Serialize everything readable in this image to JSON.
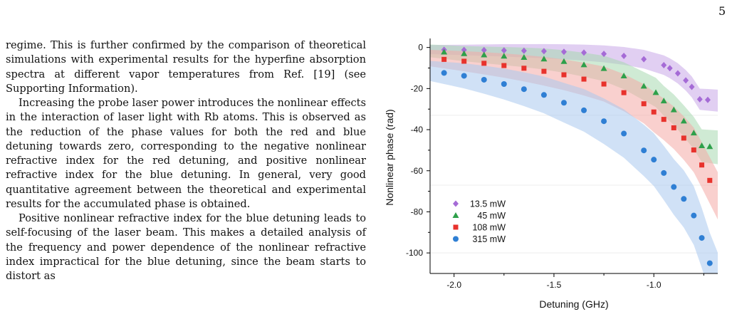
{
  "page": {
    "number": "5"
  },
  "body_text": {
    "paragraphs": [
      "regime. This is further confirmed by the comparison of theoretical simulations with experimental results for the hyperfine absorption spectra at different vapor temperatures from Ref. [19] (see Supporting Information).",
      "Increasing the probe laser power introduces the nonlinear effects in the interaction of laser light with Rb atoms. This is observed as the reduction of the phase values for both the red and blue detuning towards zero, corresponding to the negative nonlinear refractive index for the red detuning, and positive nonlinear refractive index for the blue detuning. In general, very good quantitative agreement between the theoretical and experimental results for the accumulated phase is obtained.",
      "Positive nonlinear refractive index for the blue detuning leads to self-focusing of the laser beam. This makes a detailed analysis of the frequency and power dependence of the nonlinear refractive index impractical for the blue detuning, since the beam starts to distort as"
    ]
  },
  "chart_data": {
    "type": "scatter",
    "xlabel": "Detuning (GHz)",
    "ylabel": "Nonlinear phase (rad)",
    "xlim": [
      -2.12,
      -0.68
    ],
    "ylim": [
      -110,
      3
    ],
    "x_ticks": [
      {
        "value": -2.0,
        "label": "-2.0"
      },
      {
        "value": -1.5,
        "label": "-1.5"
      },
      {
        "value": -1.0,
        "label": "-1.0"
      }
    ],
    "y_ticks": [
      {
        "value": 0,
        "label": "0"
      },
      {
        "value": -20,
        "label": "-20"
      },
      {
        "value": -40,
        "label": "-40"
      },
      {
        "value": -60,
        "label": "-60"
      },
      {
        "value": -80,
        "label": "-80"
      },
      {
        "value": -100,
        "label": "-100"
      }
    ],
    "legend_position": "lower-left",
    "series": [
      {
        "name": "13.5 mW",
        "marker": "diamond",
        "color": "#a56bd6",
        "band_color": "#c8a8e8",
        "x": [
          -2.05,
          -1.95,
          -1.85,
          -1.75,
          -1.65,
          -1.55,
          -1.45,
          -1.35,
          -1.25,
          -1.15,
          -1.05,
          -0.95,
          -0.92,
          -0.88,
          -0.84,
          -0.81,
          -0.77,
          -0.73
        ],
        "y": [
          -1.1,
          -1.2,
          -1.3,
          -1.4,
          -1.6,
          -1.8,
          -2.1,
          -2.5,
          -3.1,
          -4.1,
          -5.7,
          -8.6,
          -10.1,
          -12.6,
          -16.0,
          -19.2,
          -25.2,
          -25.5
        ]
      },
      {
        "name": "45 mW",
        "marker": "triangle",
        "color": "#2ea04a",
        "band_color": "#a7d9b0",
        "x": [
          -2.05,
          -1.95,
          -1.85,
          -1.75,
          -1.65,
          -1.55,
          -1.45,
          -1.35,
          -1.25,
          -1.15,
          -1.05,
          -0.99,
          -0.95,
          -0.9,
          -0.85,
          -0.8,
          -0.76,
          -0.72
        ],
        "y": [
          -2.2,
          -3.0,
          -3.6,
          -4.2,
          -4.8,
          -5.6,
          -6.8,
          -8.4,
          -10.2,
          -13.8,
          -18.8,
          -21.9,
          -26.0,
          -30.3,
          -35.8,
          -41.6,
          -47.8,
          -48.2
        ]
      },
      {
        "name": "108 mW",
        "marker": "square",
        "color": "#e8322c",
        "band_color": "#f4aaa6",
        "x": [
          -2.05,
          -1.95,
          -1.85,
          -1.75,
          -1.65,
          -1.55,
          -1.45,
          -1.35,
          -1.25,
          -1.15,
          -1.05,
          -1.0,
          -0.95,
          -0.9,
          -0.85,
          -0.8,
          -0.76,
          -0.72
        ],
        "y": [
          -5.8,
          -6.7,
          -7.7,
          -8.8,
          -10.1,
          -11.6,
          -13.3,
          -15.4,
          -17.8,
          -22.0,
          -27.4,
          -31.4,
          -35.0,
          -39.1,
          -44.1,
          -49.9,
          -57.2,
          -64.7
        ]
      },
      {
        "name": "315 mW",
        "marker": "circle",
        "color": "#2f7fd4",
        "band_color": "#a9c8ee",
        "x": [
          -2.05,
          -1.95,
          -1.85,
          -1.75,
          -1.65,
          -1.55,
          -1.45,
          -1.35,
          -1.25,
          -1.15,
          -1.05,
          -1.0,
          -0.95,
          -0.9,
          -0.85,
          -0.8,
          -0.76,
          -0.72
        ],
        "y": [
          -12.4,
          -13.8,
          -15.7,
          -17.8,
          -20.3,
          -23.1,
          -26.9,
          -30.6,
          -35.9,
          -41.9,
          -50.1,
          -54.6,
          -61.1,
          -67.9,
          -73.7,
          -81.8,
          -92.7,
          -105.0
        ]
      }
    ]
  }
}
